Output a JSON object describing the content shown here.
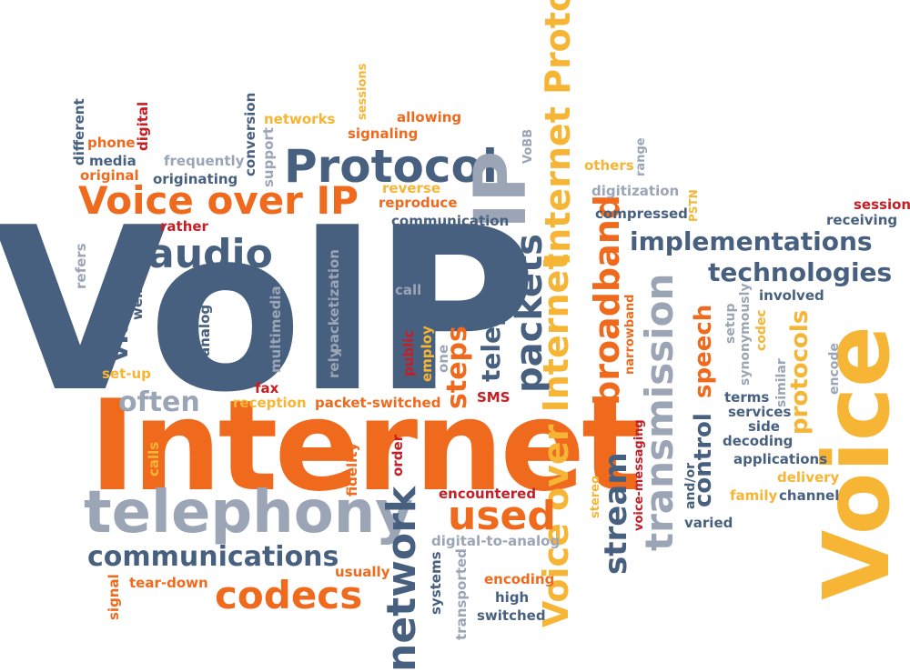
{
  "palette": {
    "blue": "#48607f",
    "orange": "#f06a1e",
    "yellow": "#f6b535",
    "gray": "#9ba5b6",
    "red": "#c51e25"
  },
  "words": [
    {
      "text": "VoIP",
      "color": "blue"
    },
    {
      "text": "Internet",
      "color": "orange"
    },
    {
      "text": "Voice",
      "color": "yellow"
    },
    {
      "text": "telephony",
      "color": "gray"
    },
    {
      "text": "Protocol",
      "color": "blue"
    },
    {
      "text": "IP",
      "color": "gray"
    },
    {
      "text": "Voice over IP",
      "color": "orange"
    },
    {
      "text": "audio",
      "color": "blue"
    },
    {
      "text": "Internet Protocol",
      "color": "yellow"
    },
    {
      "text": "Voice over Internet",
      "color": "yellow"
    },
    {
      "text": "packets",
      "color": "blue"
    },
    {
      "text": "telephone",
      "color": "blue"
    },
    {
      "text": "network",
      "color": "blue"
    },
    {
      "text": "used",
      "color": "orange"
    },
    {
      "text": "steps",
      "color": "orange"
    },
    {
      "text": "codecs",
      "color": "orange"
    },
    {
      "text": "communications",
      "color": "blue"
    },
    {
      "text": "broadband",
      "color": "orange"
    },
    {
      "text": "stream",
      "color": "blue"
    },
    {
      "text": "transmission",
      "color": "gray"
    },
    {
      "text": "implementations",
      "color": "blue"
    },
    {
      "text": "technologies",
      "color": "blue"
    },
    {
      "text": "speech",
      "color": "orange"
    },
    {
      "text": "control",
      "color": "blue"
    },
    {
      "text": "protocols",
      "color": "yellow"
    },
    {
      "text": "often",
      "color": "gray"
    },
    {
      "text": "via",
      "color": "blue"
    },
    {
      "text": "different",
      "color": "blue"
    },
    {
      "text": "phone",
      "color": "orange"
    },
    {
      "text": "digital",
      "color": "red"
    },
    {
      "text": "media",
      "color": "blue"
    },
    {
      "text": "original",
      "color": "orange"
    },
    {
      "text": "conversion",
      "color": "blue"
    },
    {
      "text": "support",
      "color": "gray"
    },
    {
      "text": "networks",
      "color": "yellow"
    },
    {
      "text": "sessions",
      "color": "yellow"
    },
    {
      "text": "allowing",
      "color": "orange"
    },
    {
      "text": "signaling",
      "color": "orange"
    },
    {
      "text": "frequently",
      "color": "gray"
    },
    {
      "text": "originating",
      "color": "blue"
    },
    {
      "text": "VoBB",
      "color": "gray"
    },
    {
      "text": "others",
      "color": "yellow"
    },
    {
      "text": "range",
      "color": "gray"
    },
    {
      "text": "digitization",
      "color": "gray"
    },
    {
      "text": "reverse",
      "color": "yellow"
    },
    {
      "text": "reproduce",
      "color": "orange"
    },
    {
      "text": "communication",
      "color": "blue"
    },
    {
      "text": "compressed",
      "color": "blue"
    },
    {
      "text": "PSTN",
      "color": "yellow"
    },
    {
      "text": "session",
      "color": "red"
    },
    {
      "text": "receiving",
      "color": "blue"
    },
    {
      "text": "rather",
      "color": "red"
    },
    {
      "text": "refers",
      "color": "gray"
    },
    {
      "text": "well",
      "color": "blue"
    },
    {
      "text": "analog",
      "color": "blue"
    },
    {
      "text": "multimedia",
      "color": "gray"
    },
    {
      "text": "rely",
      "color": "gray"
    },
    {
      "text": "packetization",
      "color": "gray"
    },
    {
      "text": "call",
      "color": "gray"
    },
    {
      "text": "public",
      "color": "red"
    },
    {
      "text": "employ",
      "color": "yellow"
    },
    {
      "text": "one",
      "color": "gray"
    },
    {
      "text": "set-up",
      "color": "yellow"
    },
    {
      "text": "fax",
      "color": "red"
    },
    {
      "text": "reception",
      "color": "yellow"
    },
    {
      "text": "packet-switched",
      "color": "orange"
    },
    {
      "text": "SMS",
      "color": "red"
    },
    {
      "text": "narrowband",
      "color": "orange"
    },
    {
      "text": "involved",
      "color": "blue"
    },
    {
      "text": "synonymously",
      "color": "gray"
    },
    {
      "text": "setup",
      "color": "gray"
    },
    {
      "text": "codec",
      "color": "yellow"
    },
    {
      "text": "similar",
      "color": "gray"
    },
    {
      "text": "encode",
      "color": "gray"
    },
    {
      "text": "terms",
      "color": "blue"
    },
    {
      "text": "services",
      "color": "blue"
    },
    {
      "text": "side",
      "color": "blue"
    },
    {
      "text": "decoding",
      "color": "blue"
    },
    {
      "text": "applications",
      "color": "blue"
    },
    {
      "text": "delivery",
      "color": "yellow"
    },
    {
      "text": "family",
      "color": "yellow"
    },
    {
      "text": "channel",
      "color": "blue"
    },
    {
      "text": "varied",
      "color": "blue"
    },
    {
      "text": "and/or",
      "color": "blue"
    },
    {
      "text": "voice-messaging",
      "color": "red"
    },
    {
      "text": "stereo",
      "color": "yellow"
    },
    {
      "text": "calls",
      "color": "yellow"
    },
    {
      "text": "fidelity",
      "color": "orange"
    },
    {
      "text": "order",
      "color": "red"
    },
    {
      "text": "encountered",
      "color": "red"
    },
    {
      "text": "digital-to-analog",
      "color": "gray"
    },
    {
      "text": "systems",
      "color": "blue"
    },
    {
      "text": "transported",
      "color": "gray"
    },
    {
      "text": "encoding",
      "color": "orange"
    },
    {
      "text": "high",
      "color": "blue"
    },
    {
      "text": "switched",
      "color": "blue"
    },
    {
      "text": "usually",
      "color": "orange"
    },
    {
      "text": "signal",
      "color": "orange"
    },
    {
      "text": "tear-down",
      "color": "orange"
    }
  ]
}
